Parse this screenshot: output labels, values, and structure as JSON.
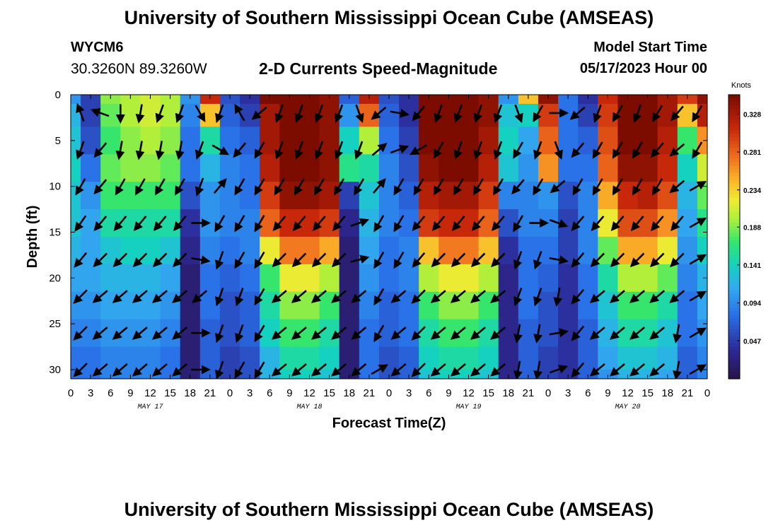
{
  "header": {
    "title": "University of Southern Mississippi Ocean Cube (AMSEAS)",
    "station_id": "WYCM6",
    "coordinates": "30.3260N  89.3260W",
    "subtitle": "2-D Currents Speed-Magnitude",
    "model_start_label": "Model Start Time",
    "model_start_value": "05/17/2023 Hour 00"
  },
  "footer": {
    "title": "University of Southern Mississippi Ocean Cube (AMSEAS)"
  },
  "chart_data": {
    "type": "heatmap",
    "title": "2-D Currents Speed-Magnitude",
    "xlabel": "Forecast Time(Z)",
    "ylabel": "Depth (ft)",
    "xlim": [
      0,
      96
    ],
    "ylim": [
      31,
      0
    ],
    "x_ticks": [
      0,
      3,
      6,
      9,
      12,
      15,
      18,
      21,
      24,
      27,
      30,
      33,
      36,
      39,
      42,
      45,
      48,
      51,
      54,
      57,
      60,
      63,
      66,
      69,
      72,
      75,
      78,
      81,
      84,
      87,
      90,
      93,
      96
    ],
    "x_tick_labels": [
      "0",
      "3",
      "6",
      "9",
      "12",
      "15",
      "18",
      "21",
      "0",
      "3",
      "6",
      "9",
      "12",
      "15",
      "18",
      "21",
      "0",
      "3",
      "6",
      "9",
      "12",
      "15",
      "18",
      "21",
      "0",
      "3",
      "6",
      "9",
      "12",
      "15",
      "18",
      "21",
      "0"
    ],
    "y_ticks": [
      0,
      5,
      10,
      15,
      20,
      25,
      30
    ],
    "y_tick_labels": [
      "0",
      "5",
      "10",
      "15",
      "20",
      "25",
      "30"
    ],
    "day_labels": [
      {
        "x": 12,
        "label": "MAY 17"
      },
      {
        "x": 36,
        "label": "MAY 18"
      },
      {
        "x": 60,
        "label": "MAY 19"
      },
      {
        "x": 84,
        "label": "MAY 20"
      }
    ],
    "colorbar": {
      "title": "Knots",
      "min": 0.0,
      "max": 0.352,
      "ticks": [
        0.047,
        0.094,
        0.141,
        0.188,
        0.234,
        0.281,
        0.328
      ],
      "tick_labels": [
        "0.047",
        "0.094",
        "0.141",
        "0.188",
        "0.234",
        "0.281",
        "0.328"
      ]
    },
    "time_hours": [
      0,
      3,
      6,
      9,
      12,
      15,
      18,
      21,
      24,
      27,
      30,
      33,
      36,
      39,
      42,
      45,
      48,
      51,
      54,
      57,
      60,
      63,
      66,
      69,
      72,
      75,
      78,
      81,
      84,
      87,
      90,
      93,
      96
    ],
    "depths_ft": [
      0,
      2,
      5,
      8,
      11,
      14,
      17,
      20,
      23,
      26,
      29,
      31
    ],
    "speed_knots": [
      [
        0.1,
        0.05,
        0.19,
        0.2,
        0.21,
        0.2,
        0.1,
        0.31,
        0.06,
        0.04,
        0.35,
        0.35,
        0.35,
        0.34,
        0.07,
        0.32,
        0.06,
        0.04,
        0.35,
        0.35,
        0.35,
        0.34,
        0.1,
        0.24,
        0.34,
        0.08,
        0.04,
        0.31,
        0.35,
        0.35,
        0.33,
        0.3,
        0.34
      ],
      [
        0.12,
        0.05,
        0.18,
        0.2,
        0.21,
        0.2,
        0.09,
        0.24,
        0.07,
        0.05,
        0.33,
        0.35,
        0.35,
        0.34,
        0.1,
        0.28,
        0.07,
        0.04,
        0.35,
        0.35,
        0.35,
        0.34,
        0.13,
        0.14,
        0.3,
        0.08,
        0.05,
        0.3,
        0.35,
        0.35,
        0.33,
        0.24,
        0.32
      ],
      [
        0.13,
        0.06,
        0.17,
        0.19,
        0.2,
        0.19,
        0.08,
        0.15,
        0.08,
        0.07,
        0.33,
        0.35,
        0.35,
        0.34,
        0.14,
        0.2,
        0.08,
        0.05,
        0.35,
        0.35,
        0.35,
        0.33,
        0.14,
        0.11,
        0.28,
        0.08,
        0.07,
        0.29,
        0.35,
        0.35,
        0.32,
        0.17,
        0.26
      ],
      [
        0.14,
        0.08,
        0.18,
        0.19,
        0.19,
        0.18,
        0.08,
        0.12,
        0.09,
        0.08,
        0.32,
        0.35,
        0.35,
        0.34,
        0.16,
        0.15,
        0.09,
        0.06,
        0.34,
        0.35,
        0.35,
        0.32,
        0.13,
        0.1,
        0.26,
        0.08,
        0.08,
        0.28,
        0.34,
        0.34,
        0.31,
        0.14,
        0.21
      ],
      [
        0.13,
        0.1,
        0.17,
        0.17,
        0.17,
        0.17,
        0.06,
        0.1,
        0.09,
        0.08,
        0.3,
        0.34,
        0.34,
        0.33,
        0.05,
        0.13,
        0.09,
        0.07,
        0.32,
        0.33,
        0.33,
        0.3,
        0.09,
        0.09,
        0.1,
        0.06,
        0.09,
        0.25,
        0.31,
        0.32,
        0.29,
        0.12,
        0.18
      ],
      [
        0.13,
        0.11,
        0.15,
        0.15,
        0.15,
        0.15,
        0.04,
        0.1,
        0.09,
        0.09,
        0.28,
        0.31,
        0.31,
        0.3,
        0.03,
        0.12,
        0.09,
        0.08,
        0.3,
        0.31,
        0.31,
        0.28,
        0.06,
        0.09,
        0.09,
        0.05,
        0.09,
        0.22,
        0.29,
        0.29,
        0.26,
        0.11,
        0.16
      ],
      [
        0.12,
        0.11,
        0.13,
        0.14,
        0.14,
        0.13,
        0.03,
        0.09,
        0.08,
        0.09,
        0.22,
        0.27,
        0.27,
        0.25,
        0.02,
        0.11,
        0.08,
        0.09,
        0.24,
        0.27,
        0.27,
        0.24,
        0.04,
        0.08,
        0.08,
        0.05,
        0.09,
        0.18,
        0.25,
        0.25,
        0.22,
        0.1,
        0.14
      ],
      [
        0.11,
        0.11,
        0.12,
        0.12,
        0.12,
        0.11,
        0.02,
        0.08,
        0.07,
        0.08,
        0.17,
        0.22,
        0.22,
        0.2,
        0.02,
        0.1,
        0.08,
        0.09,
        0.2,
        0.22,
        0.22,
        0.2,
        0.03,
        0.08,
        0.07,
        0.04,
        0.08,
        0.15,
        0.2,
        0.2,
        0.18,
        0.09,
        0.12
      ],
      [
        0.1,
        0.1,
        0.11,
        0.11,
        0.11,
        0.1,
        0.02,
        0.08,
        0.06,
        0.07,
        0.15,
        0.19,
        0.19,
        0.17,
        0.02,
        0.09,
        0.07,
        0.08,
        0.17,
        0.19,
        0.19,
        0.17,
        0.03,
        0.08,
        0.06,
        0.04,
        0.08,
        0.13,
        0.17,
        0.17,
        0.15,
        0.08,
        0.11
      ],
      [
        0.09,
        0.09,
        0.1,
        0.1,
        0.1,
        0.09,
        0.02,
        0.07,
        0.06,
        0.07,
        0.14,
        0.17,
        0.17,
        0.15,
        0.02,
        0.08,
        0.07,
        0.08,
        0.15,
        0.17,
        0.17,
        0.15,
        0.03,
        0.07,
        0.06,
        0.04,
        0.07,
        0.12,
        0.15,
        0.15,
        0.13,
        0.08,
        0.1
      ],
      [
        0.08,
        0.08,
        0.09,
        0.09,
        0.09,
        0.08,
        0.02,
        0.07,
        0.05,
        0.06,
        0.12,
        0.15,
        0.15,
        0.14,
        0.02,
        0.08,
        0.06,
        0.07,
        0.14,
        0.15,
        0.15,
        0.14,
        0.03,
        0.07,
        0.05,
        0.04,
        0.07,
        0.11,
        0.13,
        0.13,
        0.12,
        0.07,
        0.09
      ],
      [
        0.08,
        0.08,
        0.09,
        0.09,
        0.09,
        0.08,
        0.02,
        0.07,
        0.05,
        0.06,
        0.12,
        0.14,
        0.14,
        0.13,
        0.02,
        0.08,
        0.06,
        0.07,
        0.13,
        0.14,
        0.14,
        0.13,
        0.03,
        0.07,
        0.05,
        0.04,
        0.07,
        0.1,
        0.12,
        0.12,
        0.11,
        0.07,
        0.09
      ]
    ],
    "vector_depths_ft": [
      2,
      6,
      10,
      14,
      18,
      22,
      26,
      30
    ],
    "vector_times_hours": [
      1.5,
      4.5,
      7.5,
      10.5,
      13.5,
      16.5,
      19.5,
      22.5,
      25.5,
      28.5,
      31.5,
      34.5,
      37.5,
      40.5,
      43.5,
      46.5,
      49.5,
      52.5,
      55.5,
      58.5,
      61.5,
      64.5,
      67.5,
      70.5,
      73.5,
      76.5,
      79.5,
      82.5,
      85.5,
      88.5,
      91.5,
      94.5
    ],
    "vector_direction_deg": [
      [
        340,
        290,
        180,
        190,
        200,
        200,
        150,
        200,
        330,
        230,
        200,
        200,
        200,
        200,
        160,
        230,
        100,
        220,
        200,
        200,
        200,
        200,
        160,
        210,
        90,
        230,
        200,
        210,
        200,
        210,
        220,
        210
      ],
      [
        200,
        220,
        190,
        190,
        190,
        190,
        200,
        120,
        220,
        210,
        200,
        200,
        200,
        200,
        200,
        50,
        70,
        240,
        210,
        200,
        200,
        200,
        210,
        200,
        160,
        220,
        210,
        210,
        210,
        220,
        230,
        210
      ],
      [
        210,
        220,
        210,
        210,
        210,
        210,
        200,
        40,
        210,
        210,
        210,
        210,
        210,
        210,
        210,
        40,
        210,
        210,
        210,
        210,
        210,
        210,
        220,
        210,
        230,
        210,
        210,
        210,
        210,
        210,
        230,
        60
      ],
      [
        215,
        220,
        220,
        220,
        220,
        220,
        90,
        210,
        210,
        210,
        220,
        220,
        220,
        220,
        70,
        210,
        210,
        220,
        220,
        220,
        220,
        220,
        210,
        90,
        110,
        220,
        220,
        220,
        220,
        220,
        220,
        60
      ],
      [
        220,
        225,
        225,
        225,
        225,
        225,
        100,
        200,
        210,
        210,
        225,
        225,
        225,
        225,
        75,
        210,
        210,
        220,
        225,
        225,
        225,
        225,
        200,
        200,
        100,
        220,
        225,
        225,
        225,
        225,
        225,
        60
      ],
      [
        225,
        230,
        230,
        230,
        230,
        230,
        230,
        200,
        200,
        210,
        230,
        230,
        230,
        230,
        230,
        210,
        230,
        225,
        230,
        230,
        230,
        230,
        200,
        200,
        190,
        220,
        230,
        230,
        230,
        230,
        230,
        60
      ],
      [
        225,
        230,
        230,
        230,
        230,
        230,
        90,
        200,
        200,
        210,
        230,
        230,
        230,
        230,
        230,
        210,
        230,
        225,
        230,
        230,
        230,
        230,
        190,
        190,
        80,
        220,
        230,
        230,
        230,
        230,
        190,
        60
      ],
      [
        225,
        230,
        230,
        230,
        230,
        230,
        90,
        200,
        210,
        210,
        230,
        230,
        230,
        230,
        230,
        60,
        230,
        225,
        230,
        230,
        230,
        230,
        190,
        190,
        70,
        220,
        230,
        230,
        230,
        230,
        190,
        60
      ]
    ]
  }
}
